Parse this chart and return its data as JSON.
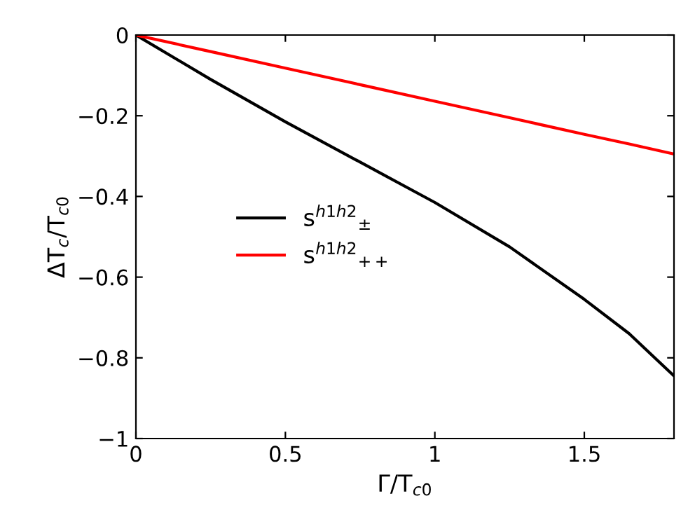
{
  "chart_data": {
    "type": "line",
    "xlabel": "Γ/T$_{c0}$",
    "ylabel": "ΔT$_{c}$/T$_{c0}$",
    "x": [
      0,
      0.25,
      0.5,
      0.75,
      1.0,
      1.25,
      1.5,
      1.65,
      1.8
    ],
    "series": [
      {
        "name": "s$^{h1h2}$$_{±}$",
        "color": "#000000",
        "values": [
          0,
          -0.11,
          -0.215,
          -0.315,
          -0.415,
          -0.525,
          -0.655,
          -0.74,
          -0.845
        ]
      },
      {
        "name": "s$^{h1h2}$$_{++}$",
        "color": "#ff0000",
        "values": [
          0,
          -0.041,
          -0.082,
          -0.123,
          -0.164,
          -0.205,
          -0.246,
          -0.27,
          -0.295
        ]
      }
    ],
    "xlim": [
      0,
      1.8
    ],
    "ylim": [
      -1,
      0
    ],
    "xticks": [
      0,
      0.5,
      1,
      1.5
    ],
    "yticks": [
      {
        "value": -1,
        "label": "−1"
      },
      {
        "value": -0.8,
        "label": "−0.8"
      },
      {
        "value": -0.6,
        "label": "−0.6"
      },
      {
        "value": -0.4,
        "label": "−0.4"
      },
      {
        "value": -0.2,
        "label": "−0.2"
      },
      0
    ],
    "grid": false,
    "legend": "center left",
    "marker": "none",
    "line_style": "solid"
  }
}
